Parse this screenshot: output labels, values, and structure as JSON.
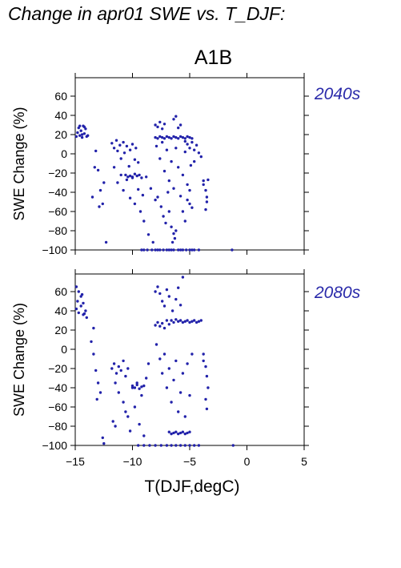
{
  "page": {
    "title": "Change in apr01 SWE vs. T_DJF:",
    "scenario": "A1B"
  },
  "colors": {
    "points": "#2222aa",
    "period_label": "#2a2aaa",
    "axes": "#000000"
  },
  "chart_data": [
    {
      "type": "scatter",
      "period_label": "2040s",
      "ylabel": "SWE Change (%)",
      "xlabel": "",
      "xlim": [
        -15,
        5
      ],
      "ylim": [
        -100,
        75
      ],
      "xticks": [
        -15,
        -10,
        -5,
        0,
        5
      ],
      "yticks": [
        -100,
        -80,
        -60,
        -40,
        -20,
        0,
        20,
        40,
        60
      ],
      "show_xticklabels": false,
      "grid": false,
      "points": [
        [
          -14.9,
          18
        ],
        [
          -14.8,
          22
        ],
        [
          -14.7,
          27
        ],
        [
          -14.6,
          19
        ],
        [
          -14.5,
          24
        ],
        [
          -14.4,
          17
        ],
        [
          -14.3,
          29
        ],
        [
          -14.2,
          21
        ],
        [
          -14.1,
          26
        ],
        [
          -14.0,
          18
        ],
        [
          -14.6,
          29
        ],
        [
          -14.4,
          20
        ],
        [
          -14.2,
          28
        ],
        [
          -13.9,
          19
        ],
        [
          -13.2,
          3
        ],
        [
          -13.0,
          -17
        ],
        [
          -12.8,
          -38
        ],
        [
          -12.6,
          -52
        ],
        [
          -12.9,
          -55
        ],
        [
          -13.5,
          -45
        ],
        [
          -13.3,
          -14
        ],
        [
          -12.5,
          -30
        ],
        [
          -12.3,
          -92
        ],
        [
          -11.8,
          11
        ],
        [
          -11.6,
          6
        ],
        [
          -11.4,
          14
        ],
        [
          -11.3,
          3
        ],
        [
          -11.1,
          9
        ],
        [
          -11.0,
          -5
        ],
        [
          -10.8,
          12
        ],
        [
          -10.7,
          1
        ],
        [
          -10.5,
          8
        ],
        [
          -10.3,
          -13
        ],
        [
          -10.2,
          4
        ],
        [
          -10.0,
          10
        ],
        [
          -9.8,
          -6
        ],
        [
          -9.7,
          6
        ],
        [
          -9.5,
          -9
        ],
        [
          -11.6,
          -14
        ],
        [
          -11.3,
          -30
        ],
        [
          -11.0,
          -22
        ],
        [
          -10.8,
          -38
        ],
        [
          -10.5,
          -27
        ],
        [
          -10.2,
          -46
        ],
        [
          -10.0,
          -24
        ],
        [
          -9.8,
          -52
        ],
        [
          -9.5,
          -37
        ],
        [
          -9.3,
          -60
        ],
        [
          -9.1,
          -43
        ],
        [
          -9.0,
          -70
        ],
        [
          -8.8,
          -24
        ],
        [
          -8.6,
          -84
        ],
        [
          -8.4,
          -36
        ],
        [
          -8.2,
          -92
        ],
        [
          -8.0,
          -48
        ],
        [
          -10.6,
          -22
        ],
        [
          -10.4,
          -24
        ],
        [
          -10.2,
          -23
        ],
        [
          -10.0,
          -25
        ],
        [
          -9.8,
          -21
        ],
        [
          -9.6,
          -23
        ],
        [
          -9.4,
          -22
        ],
        [
          -9.2,
          -25
        ],
        [
          -9.2,
          -100
        ],
        [
          -9.0,
          -100
        ],
        [
          -8.7,
          -100
        ],
        [
          -8.3,
          -100
        ],
        [
          -8.0,
          -100
        ],
        [
          -7.8,
          -100
        ],
        [
          -7.6,
          -100
        ],
        [
          -7.3,
          -100
        ],
        [
          -7.0,
          -100
        ],
        [
          -6.8,
          -100
        ],
        [
          -6.6,
          -100
        ],
        [
          -6.4,
          -100
        ],
        [
          -6.0,
          -100
        ],
        [
          -5.8,
          -100
        ],
        [
          -5.6,
          -100
        ],
        [
          -5.3,
          -100
        ],
        [
          -5.0,
          -100
        ],
        [
          -4.8,
          -100
        ],
        [
          -4.6,
          -100
        ],
        [
          -4.2,
          -100
        ],
        [
          -1.3,
          -100
        ],
        [
          -8.0,
          17
        ],
        [
          -7.8,
          16
        ],
        [
          -7.6,
          18
        ],
        [
          -7.4,
          17
        ],
        [
          -7.2,
          16
        ],
        [
          -7.0,
          18
        ],
        [
          -6.8,
          17
        ],
        [
          -6.6,
          16
        ],
        [
          -6.4,
          18
        ],
        [
          -6.2,
          17
        ],
        [
          -6.0,
          16
        ],
        [
          -5.8,
          18
        ],
        [
          -5.6,
          17
        ],
        [
          -5.4,
          16
        ],
        [
          -5.2,
          18
        ],
        [
          -5.0,
          17
        ],
        [
          -4.8,
          16
        ],
        [
          -8.0,
          30
        ],
        [
          -7.8,
          28
        ],
        [
          -7.6,
          33
        ],
        [
          -7.4,
          26
        ],
        [
          -7.2,
          31
        ],
        [
          -6.4,
          36
        ],
        [
          -6.2,
          39
        ],
        [
          -6.0,
          27
        ],
        [
          -5.8,
          30
        ],
        [
          -7.9,
          8
        ],
        [
          -7.6,
          -5
        ],
        [
          -7.4,
          12
        ],
        [
          -7.2,
          -18
        ],
        [
          -7.0,
          4
        ],
        [
          -6.8,
          -28
        ],
        [
          -6.6,
          -8
        ],
        [
          -6.4,
          -36
        ],
        [
          -6.2,
          6
        ],
        [
          -6.0,
          -14
        ],
        [
          -5.8,
          -44
        ],
        [
          -5.6,
          -22
        ],
        [
          -5.4,
          2
        ],
        [
          -5.2,
          -32
        ],
        [
          -5.0,
          -52
        ],
        [
          -4.9,
          -12
        ],
        [
          -6.8,
          -60
        ],
        [
          -6.6,
          -76
        ],
        [
          -6.4,
          -83
        ],
        [
          -6.3,
          -88
        ],
        [
          -6.2,
          -80
        ],
        [
          -6.5,
          -92
        ],
        [
          -7.8,
          -45
        ],
        [
          -7.5,
          -55
        ],
        [
          -7.3,
          -65
        ],
        [
          -7.1,
          -72
        ],
        [
          -6.9,
          -40
        ],
        [
          -5.6,
          -60
        ],
        [
          -5.4,
          -70
        ],
        [
          -5.2,
          -48
        ],
        [
          -5.0,
          -38
        ],
        [
          -4.8,
          -56
        ],
        [
          -5.2,
          10
        ],
        [
          -5.0,
          6
        ],
        [
          -4.8,
          12
        ],
        [
          -4.6,
          4
        ],
        [
          -4.4,
          9
        ],
        [
          -4.2,
          1
        ],
        [
          -4.0,
          -3
        ],
        [
          -5.4,
          13
        ],
        [
          -4.6,
          -8
        ],
        [
          -3.8,
          -28
        ],
        [
          -3.6,
          -38
        ],
        [
          -3.5,
          -50
        ],
        [
          -3.4,
          -27
        ],
        [
          -3.6,
          -58
        ],
        [
          -3.5,
          -45
        ],
        [
          -3.8,
          -32
        ]
      ]
    },
    {
      "type": "scatter",
      "period_label": "2080s",
      "ylabel": "SWE Change (%)",
      "xlabel": "T(DJF,degC)",
      "xlim": [
        -15,
        5
      ],
      "ylim": [
        -100,
        75
      ],
      "xticks": [
        -15,
        -10,
        -5,
        0,
        5
      ],
      "xtick_labels": [
        "−15",
        "−10",
        "−5",
        "0",
        "5"
      ],
      "yticks": [
        -100,
        -80,
        -60,
        -40,
        -20,
        0,
        20,
        40,
        60
      ],
      "show_xticklabels": true,
      "grid": false,
      "points": [
        [
          -14.9,
          65
        ],
        [
          -14.7,
          60
        ],
        [
          -14.5,
          55
        ],
        [
          -14.3,
          48
        ],
        [
          -14.9,
          42
        ],
        [
          -14.7,
          38
        ],
        [
          -14.5,
          45
        ],
        [
          -14.3,
          36
        ],
        [
          -14.1,
          40
        ],
        [
          -14.0,
          33
        ],
        [
          -14.8,
          50
        ],
        [
          -14.4,
          57
        ],
        [
          -14.2,
          37
        ],
        [
          -13.6,
          8
        ],
        [
          -13.4,
          -5
        ],
        [
          -13.2,
          -22
        ],
        [
          -13.0,
          -35
        ],
        [
          -12.8,
          -45
        ],
        [
          -13.4,
          22
        ],
        [
          -13.1,
          -52
        ],
        [
          -12.6,
          -92
        ],
        [
          -12.5,
          -98
        ],
        [
          -11.8,
          -20
        ],
        [
          -11.6,
          -15
        ],
        [
          -11.4,
          -25
        ],
        [
          -11.2,
          -18
        ],
        [
          -11.0,
          -22
        ],
        [
          -10.8,
          -12
        ],
        [
          -10.6,
          -28
        ],
        [
          -10.4,
          -20
        ],
        [
          -11.5,
          -35
        ],
        [
          -11.2,
          -45
        ],
        [
          -11.7,
          -75
        ],
        [
          -11.5,
          -80
        ],
        [
          -10.8,
          -55
        ],
        [
          -10.6,
          -65
        ],
        [
          -10.4,
          -70
        ],
        [
          -10.2,
          -85
        ],
        [
          -10.0,
          -40
        ],
        [
          -9.8,
          -60
        ],
        [
          -9.6,
          -35
        ],
        [
          -9.4,
          -78
        ],
        [
          -9.2,
          -48
        ],
        [
          -9.0,
          -90
        ],
        [
          -8.8,
          -30
        ],
        [
          -8.6,
          -15
        ],
        [
          -10.0,
          -38
        ],
        [
          -9.8,
          -40
        ],
        [
          -9.6,
          -37
        ],
        [
          -9.4,
          -41
        ],
        [
          -9.2,
          -39
        ],
        [
          -9.0,
          -38
        ],
        [
          -9.5,
          -100
        ],
        [
          -9.0,
          -100
        ],
        [
          -8.5,
          -100
        ],
        [
          -8.0,
          -100
        ],
        [
          -7.5,
          -100
        ],
        [
          -7.0,
          -100
        ],
        [
          -6.6,
          -100
        ],
        [
          -6.2,
          -100
        ],
        [
          -5.8,
          -100
        ],
        [
          -5.4,
          -100
        ],
        [
          -5.0,
          -100
        ],
        [
          -4.6,
          -100
        ],
        [
          -4.2,
          -100
        ],
        [
          -1.2,
          -100
        ],
        [
          -6.8,
          -86
        ],
        [
          -6.6,
          -88
        ],
        [
          -6.4,
          -87
        ],
        [
          -6.2,
          -86
        ],
        [
          -6.0,
          -88
        ],
        [
          -5.8,
          -87
        ],
        [
          -5.6,
          -86
        ],
        [
          -5.4,
          -88
        ],
        [
          -5.2,
          -87
        ],
        [
          -5.0,
          -86
        ],
        [
          -8.0,
          60
        ],
        [
          -7.8,
          65
        ],
        [
          -7.6,
          58
        ],
        [
          -7.4,
          50
        ],
        [
          -7.2,
          45
        ],
        [
          -7.0,
          62
        ],
        [
          -6.8,
          55
        ],
        [
          -6.5,
          40
        ],
        [
          -6.2,
          52
        ],
        [
          -6.0,
          64
        ],
        [
          -5.8,
          46
        ],
        [
          -5.6,
          75
        ],
        [
          -8.0,
          25
        ],
        [
          -7.8,
          28
        ],
        [
          -7.6,
          24
        ],
        [
          -7.4,
          27
        ],
        [
          -7.2,
          22
        ],
        [
          -7.0,
          30
        ],
        [
          -6.8,
          26
        ],
        [
          -6.6,
          30
        ],
        [
          -6.4,
          28
        ],
        [
          -6.2,
          31
        ],
        [
          -6.0,
          29
        ],
        [
          -5.8,
          30
        ],
        [
          -5.6,
          28
        ],
        [
          -5.4,
          29
        ],
        [
          -5.2,
          30
        ],
        [
          -5.0,
          28
        ],
        [
          -4.8,
          29
        ],
        [
          -4.6,
          30
        ],
        [
          -4.4,
          28
        ],
        [
          -4.2,
          29
        ],
        [
          -4.0,
          30
        ],
        [
          -7.9,
          5
        ],
        [
          -7.6,
          -10
        ],
        [
          -7.4,
          -25
        ],
        [
          -7.2,
          -5
        ],
        [
          -7.0,
          -40
        ],
        [
          -6.8,
          -20
        ],
        [
          -6.6,
          -55
        ],
        [
          -6.4,
          -32
        ],
        [
          -6.2,
          -12
        ],
        [
          -6.0,
          -65
        ],
        [
          -5.8,
          -45
        ],
        [
          -5.6,
          -25
        ],
        [
          -5.4,
          -70
        ],
        [
          -5.2,
          -15
        ],
        [
          -5.0,
          -48
        ],
        [
          -4.8,
          -5
        ],
        [
          -3.8,
          -5
        ],
        [
          -3.6,
          -18
        ],
        [
          -3.5,
          -28
        ],
        [
          -3.4,
          -40
        ],
        [
          -3.6,
          -52
        ],
        [
          -3.5,
          -62
        ],
        [
          -3.8,
          -12
        ]
      ]
    }
  ]
}
